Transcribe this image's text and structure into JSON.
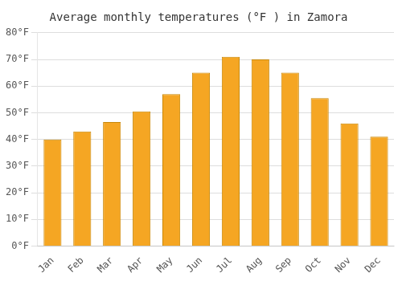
{
  "chart_data": {
    "type": "bar",
    "title": "Average monthly temperatures (°F ) in Zamora",
    "categories": [
      "Jan",
      "Feb",
      "Mar",
      "Apr",
      "May",
      "Jun",
      "Jul",
      "Aug",
      "Sep",
      "Oct",
      "Nov",
      "Dec"
    ],
    "values": [
      40,
      43,
      46.5,
      50.5,
      57,
      65,
      71,
      70,
      65,
      55.5,
      46,
      41
    ],
    "color": "#F5A623",
    "ylim": [
      0,
      80
    ],
    "yticks": [
      {
        "value": 0,
        "label": "0°F"
      },
      {
        "value": 10,
        "label": "10°F"
      },
      {
        "value": 20,
        "label": "20°F"
      },
      {
        "value": 30,
        "label": "30°F"
      },
      {
        "value": 40,
        "label": "40°F"
      },
      {
        "value": 50,
        "label": "50°F"
      },
      {
        "value": 60,
        "label": "60°F"
      },
      {
        "value": 70,
        "label": "70°F"
      },
      {
        "value": 80,
        "label": "80°F"
      }
    ],
    "grid": true
  }
}
